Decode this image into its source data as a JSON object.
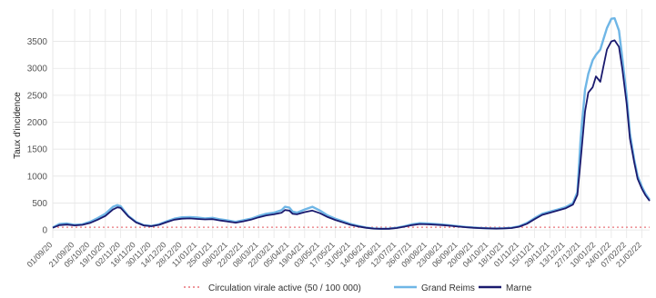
{
  "chart_data": {
    "type": "line",
    "ylabel": "Taux d'incidence",
    "ylim": [
      -150,
      4100
    ],
    "yticks": [
      0,
      500,
      1000,
      1500,
      2000,
      2500,
      3000,
      3500
    ],
    "x_dates": [
      "01/09/20",
      "21/09/20",
      "05/10/20",
      "19/10/20",
      "02/11/20",
      "16/11/20",
      "30/11/20",
      "14/12/20",
      "28/12/20",
      "11/01/21",
      "25/01/21",
      "08/02/21",
      "22/02/21",
      "08/03/21",
      "22/03/21",
      "05/04/21",
      "19/04/21",
      "03/05/21",
      "17/05/21",
      "31/05/21",
      "14/06/21",
      "28/06/21",
      "12/07/21",
      "26/07/21",
      "09/08/21",
      "23/08/21",
      "06/09/21",
      "20/09/21",
      "04/10/21",
      "18/10/21",
      "01/11/21",
      "15/11/21",
      "29/11/21",
      "13/12/21",
      "27/12/21",
      "10/01/22",
      "24/01/22",
      "07/02/22",
      "21/02/22"
    ],
    "grid": true,
    "legend_position": "bottom",
    "threshold": {
      "name": "Circulation virale active (50 / 100 000)",
      "value": 50,
      "color": "#e8737a"
    },
    "series": [
      {
        "name": "Grand Reims",
        "color": "#6fb6e6",
        "points": [
          [
            "01/09/20",
            45
          ],
          [
            "07/09/20",
            110
          ],
          [
            "14/09/20",
            120
          ],
          [
            "21/09/20",
            95
          ],
          [
            "28/09/20",
            105
          ],
          [
            "05/10/20",
            150
          ],
          [
            "12/10/20",
            220
          ],
          [
            "19/10/20",
            300
          ],
          [
            "26/10/20",
            430
          ],
          [
            "30/10/20",
            460
          ],
          [
            "02/11/20",
            440
          ],
          [
            "09/11/20",
            260
          ],
          [
            "16/11/20",
            150
          ],
          [
            "23/11/20",
            90
          ],
          [
            "30/11/20",
            75
          ],
          [
            "07/12/20",
            105
          ],
          [
            "14/12/20",
            160
          ],
          [
            "21/12/20",
            210
          ],
          [
            "28/12/20",
            235
          ],
          [
            "04/01/21",
            240
          ],
          [
            "11/01/21",
            230
          ],
          [
            "18/01/21",
            215
          ],
          [
            "25/01/21",
            225
          ],
          [
            "01/02/21",
            195
          ],
          [
            "08/02/21",
            175
          ],
          [
            "15/02/21",
            150
          ],
          [
            "22/02/21",
            180
          ],
          [
            "01/03/21",
            210
          ],
          [
            "08/03/21",
            260
          ],
          [
            "15/03/21",
            300
          ],
          [
            "22/03/21",
            320
          ],
          [
            "29/03/21",
            370
          ],
          [
            "01/04/21",
            430
          ],
          [
            "05/04/21",
            415
          ],
          [
            "08/04/21",
            340
          ],
          [
            "12/04/21",
            320
          ],
          [
            "19/04/21",
            380
          ],
          [
            "26/04/21",
            430
          ],
          [
            "03/05/21",
            360
          ],
          [
            "10/05/21",
            270
          ],
          [
            "17/05/21",
            210
          ],
          [
            "24/05/21",
            160
          ],
          [
            "31/05/21",
            110
          ],
          [
            "07/06/21",
            75
          ],
          [
            "14/06/21",
            45
          ],
          [
            "21/06/21",
            28
          ],
          [
            "28/06/21",
            22
          ],
          [
            "05/07/21",
            25
          ],
          [
            "12/07/21",
            40
          ],
          [
            "19/07/21",
            70
          ],
          [
            "26/07/21",
            105
          ],
          [
            "02/08/21",
            125
          ],
          [
            "09/08/21",
            120
          ],
          [
            "16/08/21",
            110
          ],
          [
            "23/08/21",
            100
          ],
          [
            "30/08/21",
            85
          ],
          [
            "06/09/21",
            70
          ],
          [
            "13/09/21",
            55
          ],
          [
            "20/09/21",
            45
          ],
          [
            "27/09/21",
            38
          ],
          [
            "04/10/21",
            30
          ],
          [
            "11/10/21",
            28
          ],
          [
            "18/10/21",
            32
          ],
          [
            "25/10/21",
            40
          ],
          [
            "01/11/21",
            70
          ],
          [
            "08/11/21",
            130
          ],
          [
            "15/11/21",
            220
          ],
          [
            "22/11/21",
            300
          ],
          [
            "29/11/21",
            340
          ],
          [
            "06/12/21",
            380
          ],
          [
            "13/12/21",
            420
          ],
          [
            "20/12/21",
            500
          ],
          [
            "24/12/21",
            700
          ],
          [
            "27/12/21",
            1700
          ],
          [
            "31/12/21",
            2600
          ],
          [
            "03/01/22",
            2900
          ],
          [
            "07/01/22",
            3150
          ],
          [
            "10/01/22",
            3250
          ],
          [
            "14/01/22",
            3350
          ],
          [
            "17/01/22",
            3550
          ],
          [
            "20/01/22",
            3750
          ],
          [
            "24/01/22",
            3920
          ],
          [
            "27/01/22",
            3930
          ],
          [
            "31/01/22",
            3700
          ],
          [
            "03/02/22",
            3200
          ],
          [
            "07/02/22",
            2500
          ],
          [
            "10/02/22",
            1800
          ],
          [
            "14/02/22",
            1300
          ],
          [
            "17/02/22",
            1000
          ],
          [
            "21/02/22",
            800
          ],
          [
            "24/02/22",
            680
          ],
          [
            "28/02/22",
            560
          ]
        ]
      },
      {
        "name": "Marne",
        "color": "#1a1a6e",
        "points": [
          [
            "01/09/20",
            40
          ],
          [
            "07/09/20",
            90
          ],
          [
            "14/09/20",
            100
          ],
          [
            "21/09/20",
            85
          ],
          [
            "28/09/20",
            95
          ],
          [
            "05/10/20",
            130
          ],
          [
            "12/10/20",
            190
          ],
          [
            "19/10/20",
            260
          ],
          [
            "26/10/20",
            380
          ],
          [
            "30/10/20",
            420
          ],
          [
            "02/11/20",
            410
          ],
          [
            "09/11/20",
            250
          ],
          [
            "16/11/20",
            140
          ],
          [
            "23/11/20",
            85
          ],
          [
            "30/11/20",
            70
          ],
          [
            "07/12/20",
            95
          ],
          [
            "14/12/20",
            145
          ],
          [
            "21/12/20",
            190
          ],
          [
            "28/12/20",
            210
          ],
          [
            "04/01/21",
            215
          ],
          [
            "11/01/21",
            205
          ],
          [
            "18/01/21",
            195
          ],
          [
            "25/01/21",
            200
          ],
          [
            "01/02/21",
            175
          ],
          [
            "08/02/21",
            155
          ],
          [
            "15/02/21",
            135
          ],
          [
            "22/02/21",
            160
          ],
          [
            "01/03/21",
            190
          ],
          [
            "08/03/21",
            235
          ],
          [
            "15/03/21",
            270
          ],
          [
            "22/03/21",
            290
          ],
          [
            "29/03/21",
            320
          ],
          [
            "01/04/21",
            370
          ],
          [
            "05/04/21",
            360
          ],
          [
            "08/04/21",
            300
          ],
          [
            "12/04/21",
            290
          ],
          [
            "19/04/21",
            330
          ],
          [
            "26/04/21",
            360
          ],
          [
            "03/05/21",
            310
          ],
          [
            "10/05/21",
            240
          ],
          [
            "17/05/21",
            185
          ],
          [
            "24/05/21",
            140
          ],
          [
            "31/05/21",
            95
          ],
          [
            "07/06/21",
            65
          ],
          [
            "14/06/21",
            40
          ],
          [
            "21/06/21",
            25
          ],
          [
            "28/06/21",
            20
          ],
          [
            "05/07/21",
            22
          ],
          [
            "12/07/21",
            35
          ],
          [
            "19/07/21",
            60
          ],
          [
            "26/07/21",
            90
          ],
          [
            "02/08/21",
            110
          ],
          [
            "09/08/21",
            105
          ],
          [
            "16/08/21",
            98
          ],
          [
            "23/08/21",
            90
          ],
          [
            "30/08/21",
            78
          ],
          [
            "06/09/21",
            62
          ],
          [
            "13/09/21",
            50
          ],
          [
            "20/09/21",
            40
          ],
          [
            "27/09/21",
            34
          ],
          [
            "04/10/21",
            28
          ],
          [
            "11/10/21",
            25
          ],
          [
            "18/10/21",
            28
          ],
          [
            "25/10/21",
            36
          ],
          [
            "01/11/21",
            60
          ],
          [
            "08/11/21",
            115
          ],
          [
            "15/11/21",
            200
          ],
          [
            "22/11/21",
            280
          ],
          [
            "29/11/21",
            320
          ],
          [
            "06/12/21",
            360
          ],
          [
            "13/12/21",
            400
          ],
          [
            "20/12/21",
            470
          ],
          [
            "24/12/21",
            650
          ],
          [
            "27/12/21",
            1300
          ],
          [
            "31/12/21",
            2200
          ],
          [
            "03/01/22",
            2550
          ],
          [
            "07/01/22",
            2650
          ],
          [
            "10/01/22",
            2850
          ],
          [
            "14/01/22",
            2750
          ],
          [
            "17/01/22",
            3050
          ],
          [
            "20/01/22",
            3350
          ],
          [
            "24/01/22",
            3500
          ],
          [
            "27/01/22",
            3520
          ],
          [
            "31/01/22",
            3400
          ],
          [
            "03/02/22",
            3000
          ],
          [
            "07/02/22",
            2350
          ],
          [
            "10/02/22",
            1700
          ],
          [
            "14/02/22",
            1250
          ],
          [
            "17/02/22",
            950
          ],
          [
            "21/02/22",
            760
          ],
          [
            "24/02/22",
            650
          ],
          [
            "28/02/22",
            540
          ]
        ]
      }
    ]
  }
}
